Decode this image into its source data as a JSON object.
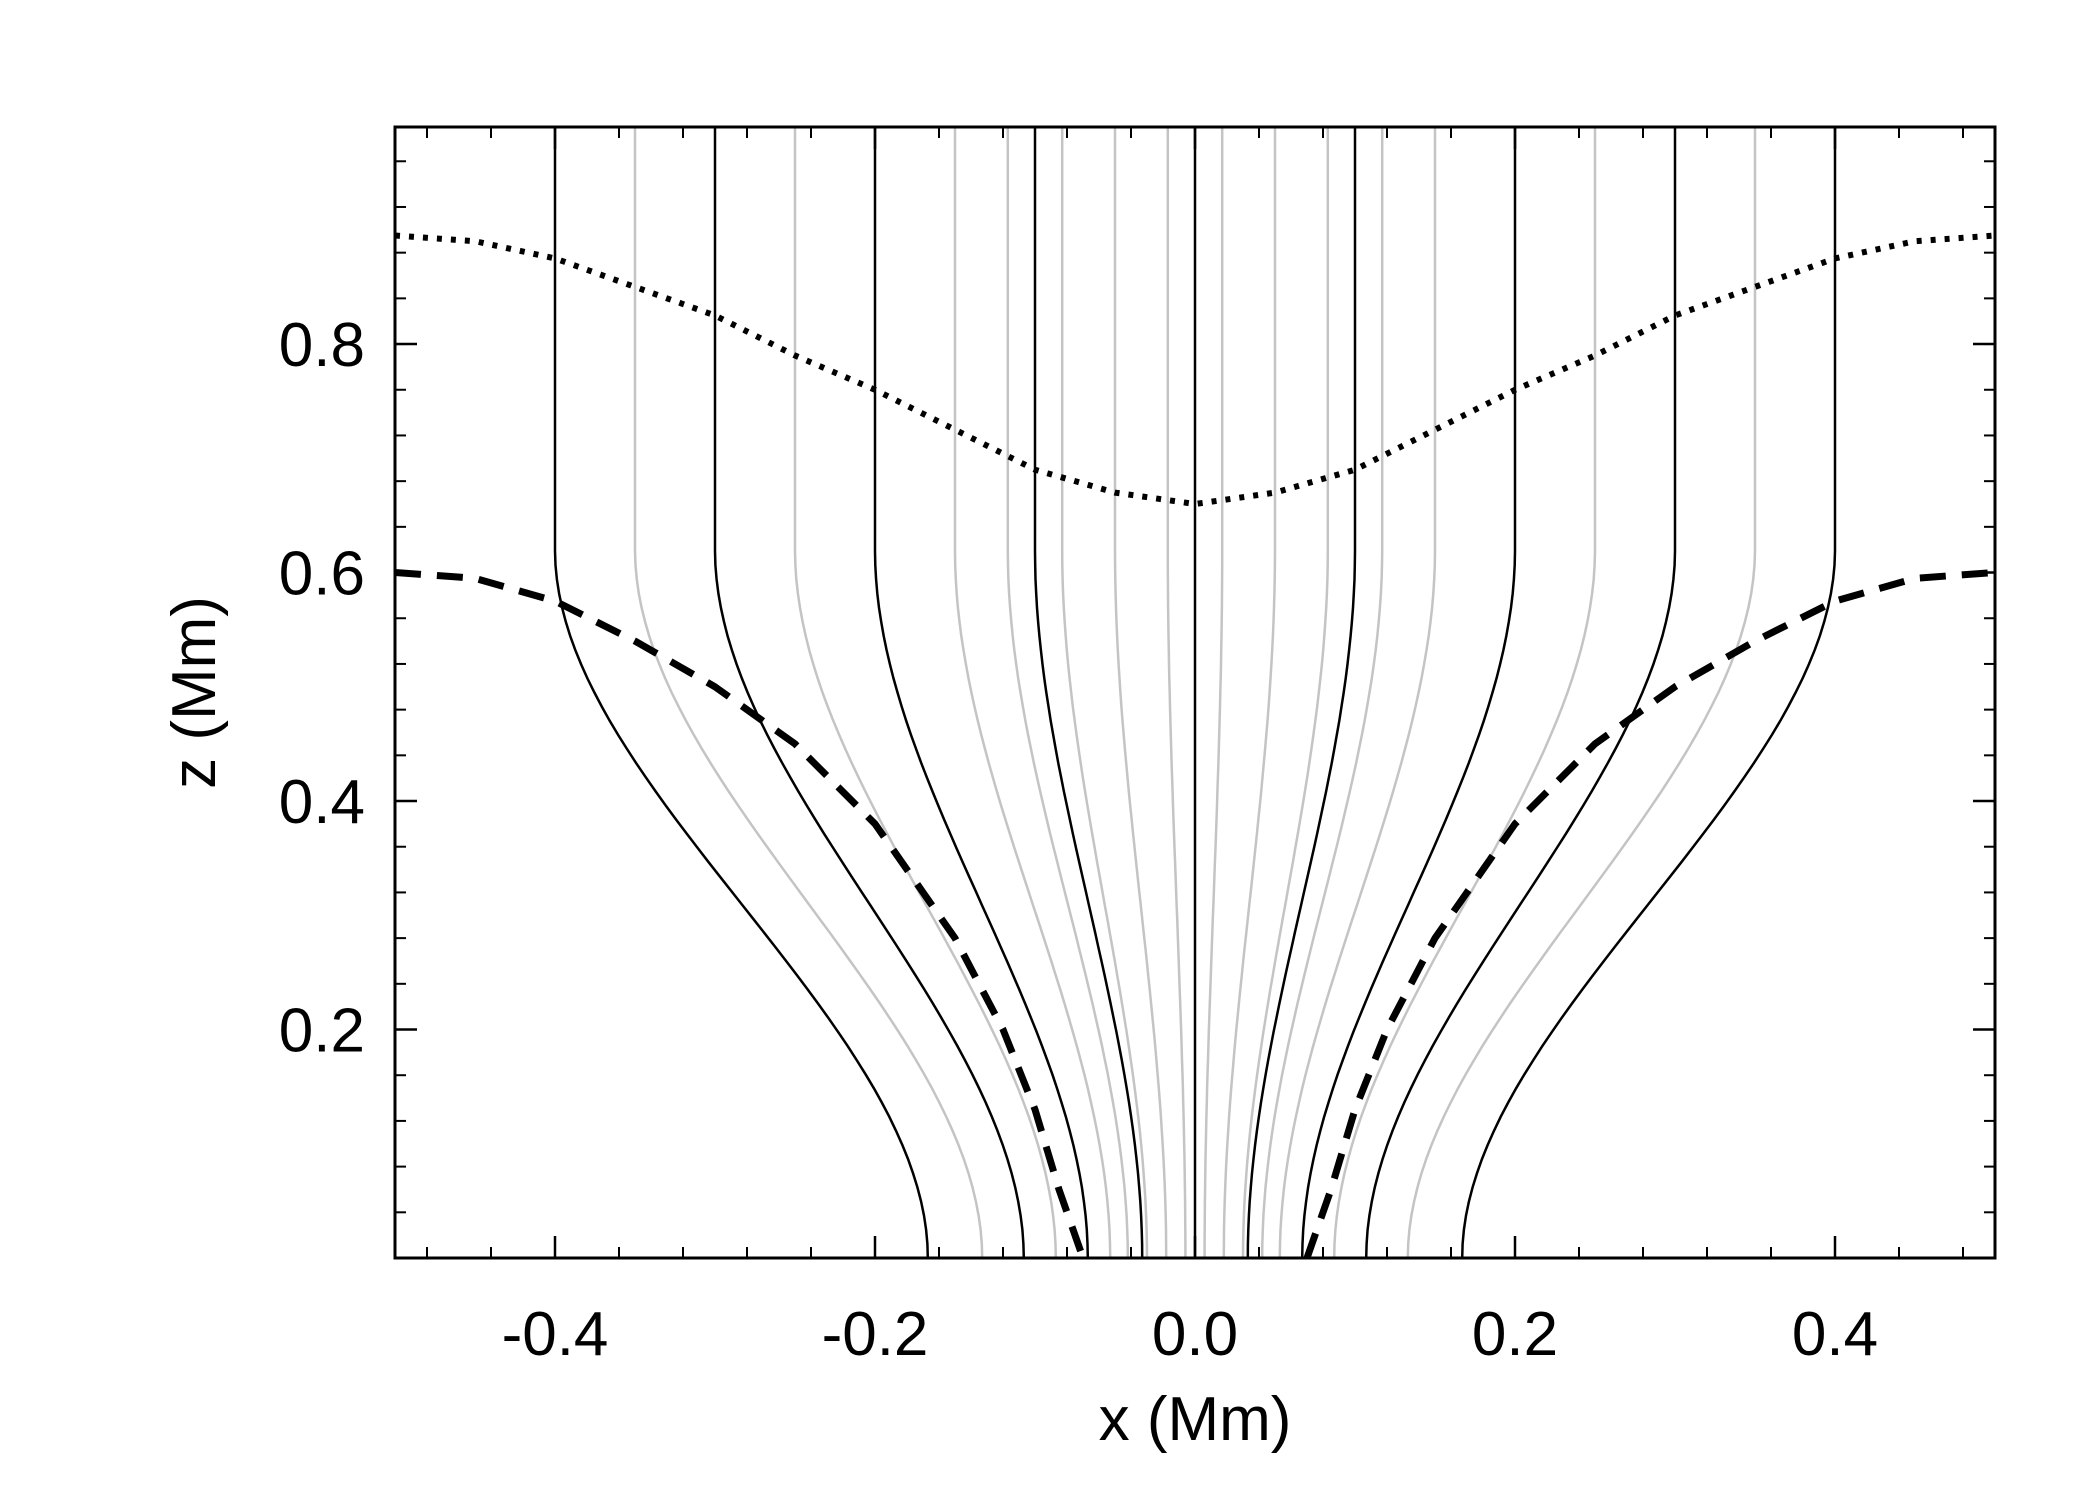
{
  "chart_data": {
    "type": "line",
    "xlabel": "x (Mm)",
    "ylabel": "z (Mm)",
    "xlim": [
      -0.5,
      0.5
    ],
    "ylim": [
      0.0,
      0.99
    ],
    "grid": false,
    "x_ticks": [
      {
        "value": -0.4,
        "label": "-0.4"
      },
      {
        "value": -0.2,
        "label": "-0.2"
      },
      {
        "value": 0.0,
        "label": "0.0"
      },
      {
        "value": 0.2,
        "label": "0.2"
      },
      {
        "value": 0.4,
        "label": "0.4"
      }
    ],
    "y_ticks": [
      {
        "value": 0.2,
        "label": "0.2"
      },
      {
        "value": 0.4,
        "label": "0.4"
      },
      {
        "value": 0.6,
        "label": "0.6"
      },
      {
        "value": 0.8,
        "label": "0.8"
      }
    ],
    "field_lines": {
      "black_top_x": [
        -0.4,
        -0.3,
        -0.2,
        -0.1,
        0.0,
        0.1,
        0.2,
        0.3,
        0.4
      ],
      "black_base_x": [
        -0.167,
        -0.107,
        -0.067,
        -0.033,
        0.0,
        0.033,
        0.067,
        0.107,
        0.167
      ],
      "gray_top_x": [
        -0.35,
        -0.25,
        -0.15,
        -0.117,
        -0.083,
        -0.05,
        -0.017,
        0.017,
        0.05,
        0.083,
        0.117,
        0.15,
        0.25,
        0.35
      ],
      "gray_base_x": [
        -0.133,
        -0.087,
        -0.053,
        -0.042,
        -0.03,
        -0.018,
        -0.006,
        0.006,
        0.018,
        0.03,
        0.042,
        0.053,
        0.087,
        0.133
      ],
      "black_color": "#000000",
      "gray_color": "#c4c4c4"
    },
    "series": [
      {
        "style": "dotted",
        "x": [
          -0.5,
          -0.45,
          -0.4,
          -0.35,
          -0.3,
          -0.25,
          -0.2,
          -0.15,
          -0.1,
          -0.05,
          0.0,
          0.05,
          0.1,
          0.15,
          0.2,
          0.25,
          0.3,
          0.35,
          0.4,
          0.45,
          0.5
        ],
        "y": [
          0.895,
          0.89,
          0.875,
          0.85,
          0.825,
          0.79,
          0.76,
          0.725,
          0.69,
          0.67,
          0.66,
          0.67,
          0.69,
          0.725,
          0.76,
          0.79,
          0.825,
          0.85,
          0.875,
          0.89,
          0.895
        ]
      },
      {
        "style": "dashed",
        "x": [
          -0.5,
          -0.45,
          -0.4,
          -0.35,
          -0.3,
          -0.25,
          -0.2,
          -0.15,
          -0.12,
          -0.1,
          -0.085,
          -0.07
        ],
        "y": [
          0.6,
          0.595,
          0.575,
          0.54,
          0.5,
          0.45,
          0.38,
          0.28,
          0.2,
          0.13,
          0.06,
          0.0
        ]
      },
      {
        "style": "dashed",
        "x": [
          0.07,
          0.085,
          0.1,
          0.12,
          0.15,
          0.2,
          0.25,
          0.3,
          0.35,
          0.4,
          0.45,
          0.5
        ],
        "y": [
          0.0,
          0.06,
          0.13,
          0.2,
          0.28,
          0.38,
          0.45,
          0.5,
          0.54,
          0.575,
          0.595,
          0.6
        ]
      }
    ]
  }
}
